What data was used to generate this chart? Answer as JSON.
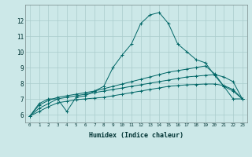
{
  "title": "",
  "xlabel": "Humidex (Indice chaleur)",
  "background_color": "#cce8e8",
  "grid_color": "#aacccc",
  "line_color": "#006666",
  "xlim": [
    -0.5,
    23.5
  ],
  "ylim": [
    5.5,
    13.0
  ],
  "xticks": [
    0,
    1,
    2,
    3,
    4,
    5,
    6,
    7,
    8,
    9,
    10,
    11,
    12,
    13,
    14,
    15,
    16,
    17,
    18,
    19,
    20,
    21,
    22,
    23
  ],
  "yticks": [
    6,
    7,
    8,
    9,
    10,
    11,
    12
  ],
  "series": [
    {
      "x": [
        0,
        1,
        2,
        3,
        4,
        5,
        6,
        7,
        8,
        9,
        10,
        11,
        12,
        13,
        14,
        15,
        16,
        17,
        18,
        19,
        20,
        21,
        22,
        23
      ],
      "y": [
        5.9,
        6.7,
        7.0,
        7.0,
        6.2,
        7.1,
        7.2,
        7.5,
        7.8,
        9.0,
        9.8,
        10.5,
        11.8,
        12.35,
        12.5,
        11.8,
        10.5,
        10.0,
        9.5,
        9.3,
        8.5,
        7.8,
        7.0,
        7.0
      ]
    },
    {
      "x": [
        0,
        1,
        2,
        3,
        4,
        5,
        6,
        7,
        8,
        9,
        10,
        11,
        12,
        13,
        14,
        15,
        16,
        17,
        18,
        19,
        20,
        21,
        22,
        23
      ],
      "y": [
        5.9,
        6.6,
        6.9,
        7.1,
        7.2,
        7.3,
        7.4,
        7.5,
        7.65,
        7.8,
        7.95,
        8.1,
        8.25,
        8.4,
        8.55,
        8.7,
        8.8,
        8.9,
        9.0,
        9.1,
        8.6,
        7.8,
        7.5,
        7.0
      ]
    },
    {
      "x": [
        0,
        1,
        2,
        3,
        4,
        5,
        6,
        7,
        8,
        9,
        10,
        11,
        12,
        13,
        14,
        15,
        16,
        17,
        18,
        19,
        20,
        21,
        22,
        23
      ],
      "y": [
        5.9,
        6.4,
        6.7,
        7.0,
        7.1,
        7.2,
        7.3,
        7.4,
        7.5,
        7.6,
        7.7,
        7.8,
        7.9,
        8.0,
        8.1,
        8.2,
        8.3,
        8.4,
        8.45,
        8.5,
        8.55,
        8.4,
        8.1,
        7.0
      ]
    },
    {
      "x": [
        0,
        1,
        2,
        3,
        4,
        5,
        6,
        7,
        8,
        9,
        10,
        11,
        12,
        13,
        14,
        15,
        16,
        17,
        18,
        19,
        20,
        21,
        22,
        23
      ],
      "y": [
        5.9,
        6.2,
        6.5,
        6.75,
        6.85,
        6.95,
        7.0,
        7.05,
        7.1,
        7.2,
        7.3,
        7.4,
        7.5,
        7.6,
        7.7,
        7.8,
        7.85,
        7.9,
        7.92,
        7.95,
        7.95,
        7.85,
        7.6,
        7.0
      ]
    }
  ]
}
